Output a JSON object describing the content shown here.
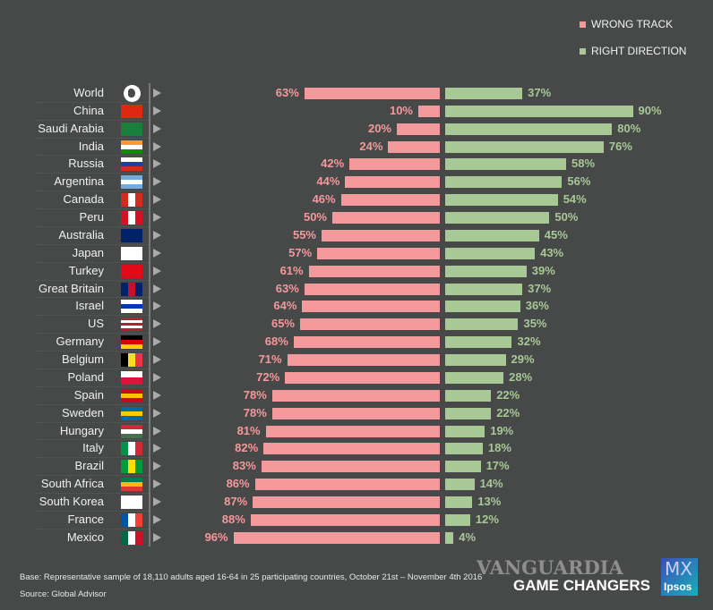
{
  "chart_data": {
    "type": "bar",
    "orientation": "horizontal-diverging",
    "categories": [
      "World",
      "China",
      "Saudi Arabia",
      "India",
      "Russia",
      "Argentina",
      "Canada",
      "Peru",
      "Australia",
      "Japan",
      "Turkey",
      "Great Britain",
      "Israel",
      "US",
      "Germany",
      "Belgium",
      "Poland",
      "Spain",
      "Sweden",
      "Hungary",
      "Italy",
      "Brazil",
      "South Africa",
      "South Korea",
      "France",
      "Mexico"
    ],
    "series": [
      {
        "name": "WRONG TRACK",
        "color": "#f4999b",
        "values": [
          63,
          10,
          20,
          24,
          42,
          44,
          46,
          50,
          55,
          57,
          61,
          63,
          64,
          65,
          68,
          71,
          72,
          78,
          78,
          81,
          82,
          83,
          86,
          87,
          88,
          96
        ]
      },
      {
        "name": "RIGHT DIRECTION",
        "color": "#a8c896",
        "values": [
          37,
          90,
          80,
          76,
          58,
          56,
          54,
          50,
          45,
          43,
          39,
          37,
          36,
          35,
          32,
          29,
          28,
          22,
          22,
          19,
          18,
          17,
          14,
          13,
          12,
          4
        ]
      }
    ],
    "value_suffix": "%",
    "xlim": [
      0,
      100
    ],
    "legend": "top-right",
    "grid": false
  },
  "flags": [
    "globe",
    [
      "#de2910",
      "#de2910"
    ],
    [
      "#1a7f3a"
    ],
    [
      "#ff9933",
      "#ffffff",
      "#138808",
      "v"
    ],
    [
      "#ffffff",
      "#1c3fa8",
      "#d52b1e",
      "v"
    ],
    [
      "#75aadb",
      "#ffffff",
      "#75aadb",
      "v"
    ],
    [
      "#d52b1e",
      "#ffffff",
      "#d52b1e"
    ],
    [
      "#d91023",
      "#ffffff",
      "#d91023"
    ],
    [
      "#012169",
      "#012169"
    ],
    [
      "#ffffff"
    ],
    [
      "#e30a17"
    ],
    [
      "#012169",
      "#c8102e",
      "#012169"
    ],
    [
      "#ffffff",
      "#0038b8",
      "#ffffff",
      "v"
    ],
    [
      "#b22234",
      "#ffffff",
      "#b22234",
      "#ffffff",
      "#b22234",
      "v"
    ],
    [
      "#000000",
      "#dd0000",
      "#ffce00",
      "v"
    ],
    [
      "#000000",
      "#fdda24",
      "#ef3340"
    ],
    [
      "#ffffff",
      "#dc143c",
      "v"
    ],
    [
      "#c60b1e",
      "#ffc400",
      "#c60b1e",
      "v"
    ],
    [
      "#006aa7",
      "#fecc00",
      "#006aa7",
      "v"
    ],
    [
      "#ce2939",
      "#ffffff",
      "#477050",
      "v"
    ],
    [
      "#009246",
      "#ffffff",
      "#ce2b37"
    ],
    [
      "#009b3a",
      "#fedf00",
      "#009b3a"
    ],
    [
      "#007a4d",
      "#ffb612",
      "#de3831",
      "v"
    ],
    [
      "#ffffff"
    ],
    [
      "#0055a4",
      "#ffffff",
      "#ef4135"
    ],
    [
      "#006847",
      "#ffffff",
      "#ce1126"
    ]
  ],
  "footer": {
    "base": "Base: Representative sample of 18,110 adults aged 16-64 in 25 participating countries, October 21st – November 4th 2016",
    "source": "Source: Global Advisor"
  },
  "branding": {
    "watermark": "VANGUARDIA",
    "mx": "MX",
    "tagline": "GAME CHANGERS",
    "logo": "Ipsos"
  }
}
